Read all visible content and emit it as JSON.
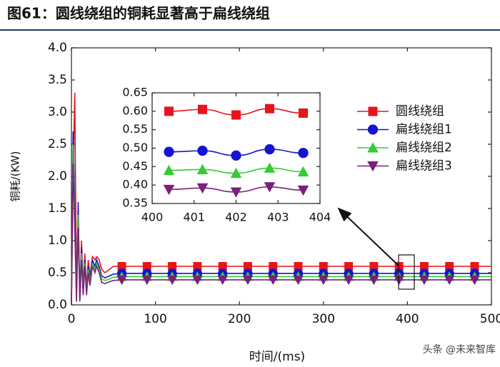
{
  "title": "图61：圆线绕组的铜耗显著高于扁线绕组",
  "watermark": "头条 @未来智库",
  "chart_data": [
    {
      "type": "line",
      "ylabel": "铜耗/(KW)",
      "xlabel": "时间/(ms)",
      "xlim": [
        0,
        500
      ],
      "xticks": [
        0,
        100,
        200,
        300,
        400,
        500
      ],
      "ylim": [
        0,
        4
      ],
      "yticks": [
        {
          "value": 0,
          "label": "0.0"
        },
        0.5,
        {
          "value": 1,
          "label": "1.0"
        },
        1.5,
        {
          "value": 2,
          "label": "2.0"
        },
        2.5,
        {
          "value": 3,
          "label": "3.0"
        },
        3.5,
        {
          "value": 4,
          "label": "4.0"
        }
      ],
      "legend": "right",
      "x": [
        0,
        2,
        4,
        6,
        8,
        10,
        12,
        14,
        16,
        18,
        20,
        22,
        25,
        28,
        30,
        33,
        36,
        40,
        45,
        50,
        60,
        100,
        200,
        300,
        400,
        500
      ],
      "marker_x": [
        60,
        90,
        120,
        150,
        180,
        210,
        240,
        270,
        300,
        330,
        360,
        390,
        420,
        450,
        480
      ],
      "series": [
        {
          "name": "圆线绕组",
          "color": "#e8141c",
          "marker": "square",
          "values": [
            0,
            2.0,
            3.3,
            0.2,
            1.5,
            0.1,
            1.0,
            0.3,
            0.8,
            0.25,
            0.7,
            0.45,
            0.75,
            0.7,
            0.75,
            0.7,
            0.55,
            0.5,
            0.55,
            0.6,
            0.6,
            0.6,
            0.6,
            0.6,
            0.6,
            0.6
          ],
          "marker_values": [
            0.6,
            0.6,
            0.6,
            0.6,
            0.6,
            0.6,
            0.6,
            0.6,
            0.6,
            0.6,
            0.6,
            0.6,
            0.6,
            0.6,
            0.6
          ]
        },
        {
          "name": "扁线绕组1",
          "color": "#1414d2",
          "marker": "circle",
          "values": [
            0,
            2.7,
            1.5,
            0.1,
            1.6,
            0.1,
            0.9,
            0.25,
            0.7,
            0.2,
            0.6,
            0.4,
            0.7,
            0.6,
            0.7,
            0.6,
            0.45,
            0.42,
            0.45,
            0.48,
            0.49,
            0.49,
            0.49,
            0.49,
            0.49,
            0.49
          ],
          "marker_values": [
            0.49,
            0.49,
            0.49,
            0.49,
            0.49,
            0.49,
            0.49,
            0.49,
            0.49,
            0.49,
            0.49,
            0.49,
            0.49,
            0.49,
            0.49
          ]
        },
        {
          "name": "扁线绕组2",
          "color": "#33cc33",
          "marker": "triangle",
          "values": [
            0,
            2.5,
            1.3,
            0.1,
            1.4,
            0.1,
            0.8,
            0.2,
            0.65,
            0.2,
            0.55,
            0.35,
            0.65,
            0.55,
            0.65,
            0.55,
            0.4,
            0.38,
            0.4,
            0.43,
            0.44,
            0.44,
            0.44,
            0.44,
            0.44,
            0.44
          ],
          "marker_values": [
            0.44,
            0.44,
            0.44,
            0.44,
            0.44,
            0.44,
            0.44,
            0.44,
            0.44,
            0.44,
            0.44,
            0.44,
            0.44,
            0.44,
            0.44
          ]
        },
        {
          "name": "扁线绕组3",
          "color": "#7b1f7b",
          "marker": "triangle-down",
          "values": [
            0,
            2.2,
            1.2,
            0.05,
            1.2,
            0.05,
            0.7,
            0.15,
            0.6,
            0.15,
            0.5,
            0.3,
            0.6,
            0.5,
            0.6,
            0.5,
            0.35,
            0.33,
            0.36,
            0.38,
            0.39,
            0.39,
            0.39,
            0.39,
            0.39,
            0.39
          ],
          "marker_values": [
            0.39,
            0.39,
            0.39,
            0.39,
            0.39,
            0.39,
            0.39,
            0.39,
            0.39,
            0.39,
            0.39,
            0.39,
            0.39,
            0.39,
            0.39
          ]
        }
      ]
    },
    {
      "type": "line",
      "xlim": [
        400,
        404
      ],
      "xticks": [
        400,
        401,
        402,
        403,
        404
      ],
      "ylim": [
        0.35,
        0.65
      ],
      "yticks": [
        0.35,
        {
          "value": 0.4,
          "label": "0.40"
        },
        0.45,
        {
          "value": 0.5,
          "label": "0.50"
        },
        0.55,
        {
          "value": 0.6,
          "label": "0.60"
        },
        0.65
      ],
      "x": [
        400.4,
        401.2,
        402,
        402.8,
        403.6
      ],
      "series": [
        {
          "color": "#e8141c",
          "marker": "square",
          "values": [
            0.6,
            0.605,
            0.59,
            0.607,
            0.595
          ]
        },
        {
          "color": "#1414d2",
          "marker": "circle",
          "values": [
            0.49,
            0.493,
            0.48,
            0.497,
            0.487
          ]
        },
        {
          "color": "#33cc33",
          "marker": "triangle",
          "values": [
            0.44,
            0.442,
            0.432,
            0.446,
            0.436
          ]
        },
        {
          "color": "#7b1f7b",
          "marker": "triangle-down",
          "values": [
            0.388,
            0.392,
            0.381,
            0.395,
            0.386
          ]
        }
      ]
    }
  ]
}
